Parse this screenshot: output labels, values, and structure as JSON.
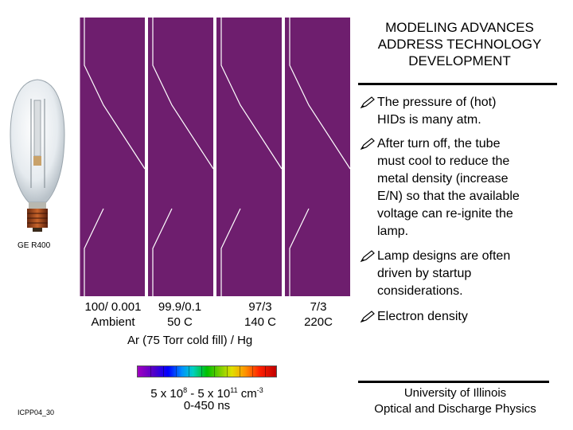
{
  "title": {
    "lines": [
      "MODELING ADVANCES",
      "ADDRESS TECHNOLOGY",
      "DEVELOPMENT"
    ]
  },
  "bullets": [
    {
      "lines": [
        "The pressure of (hot)",
        "HIDs is many atm."
      ]
    },
    {
      "lines": [
        "After turn off, the tube",
        "must cool to reduce the",
        "metal density (increase",
        "E/N) so that the available",
        "voltage can re-ignite the",
        "lamp."
      ]
    },
    {
      "lines": [
        "Lamp designs are often",
        "driven by startup",
        "considerations."
      ]
    },
    {
      "lines": [
        "Electron density"
      ]
    }
  ],
  "lamp": {
    "label": "GE R400"
  },
  "panels": {
    "count": 4,
    "fill_color": "#6e1e6e",
    "captions": [
      {
        "line1": "100/ 0.001",
        "line2": "Ambient"
      },
      {
        "line1": "99.9/0.1",
        "line2": "50 C"
      },
      {
        "line1": "97/3",
        "line2": "140 C"
      },
      {
        "line1": "7/3",
        "line2": "220C"
      }
    ],
    "gas_note": "Ar (75 Torr cold fill) / Hg"
  },
  "density_scale": {
    "prefix": "5 x 10",
    "exp1": "8",
    "middle": " - 5 x 10",
    "exp2": "11",
    "unit": " cm",
    "unit_exp": "-3",
    "time_range": "0-450 ns"
  },
  "slide_id": "ICPP04_30",
  "footer": {
    "line1": "University of Illinois",
    "line2": "Optical and Discharge Physics"
  }
}
